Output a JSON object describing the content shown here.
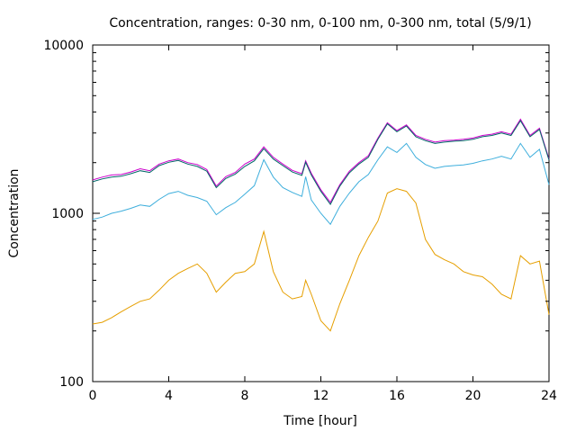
{
  "chart_data": {
    "type": "line",
    "title": "Concentration, ranges: 0-30 nm, 0-100 nm, 0-300 nm, total (5/9/1)",
    "xlabel": "Time [hour]",
    "ylabel": "Concentration",
    "xlim": [
      0,
      24
    ],
    "ylim": [
      100,
      10000
    ],
    "yscale": "log",
    "grid": false,
    "legend": "none",
    "x_ticks": [
      "0",
      "4",
      "8",
      "12",
      "16",
      "20",
      "24"
    ],
    "y_ticks": [
      "100",
      "1000",
      "10000"
    ],
    "x": [
      0,
      0.5,
      1,
      1.5,
      2,
      2.5,
      3,
      3.5,
      4,
      4.5,
      5,
      5.5,
      6,
      6.5,
      7,
      7.5,
      8,
      8.5,
      9,
      9.5,
      10,
      10.5,
      11,
      11.2,
      11.5,
      12,
      12.5,
      13,
      13.5,
      14,
      14.5,
      15,
      15.5,
      16,
      16.5,
      17,
      17.5,
      18,
      18.5,
      19,
      19.5,
      20,
      20.5,
      21,
      21.5,
      22,
      22.5,
      23,
      23.5,
      24
    ],
    "series": [
      {
        "color": "#cc00cc",
        "values": [
          1580,
          1640,
          1690,
          1700,
          1760,
          1840,
          1790,
          1960,
          2050,
          2100,
          2000,
          1950,
          1820,
          1450,
          1650,
          1750,
          1960,
          2100,
          2480,
          2150,
          1960,
          1800,
          1720,
          2050,
          1730,
          1380,
          1160,
          1480,
          1780,
          2000,
          2200,
          2800,
          3450,
          3100,
          3350,
          2900,
          2750,
          2650,
          2700,
          2720,
          2750,
          2800,
          2900,
          2950,
          3050,
          2950,
          3620,
          2900,
          3200,
          2100
        ]
      },
      {
        "color": "#006666",
        "values": [
          1540,
          1600,
          1640,
          1660,
          1720,
          1790,
          1750,
          1920,
          2010,
          2060,
          1960,
          1900,
          1780,
          1420,
          1610,
          1710,
          1900,
          2050,
          2420,
          2100,
          1920,
          1760,
          1680,
          2010,
          1690,
          1350,
          1130,
          1450,
          1740,
          1960,
          2150,
          2750,
          3400,
          3050,
          3300,
          2850,
          2700,
          2600,
          2650,
          2680,
          2700,
          2750,
          2850,
          2900,
          3000,
          2900,
          3550,
          2850,
          3150,
          2070
        ]
      },
      {
        "color": "#3daedc",
        "values": [
          920,
          950,
          1000,
          1030,
          1070,
          1120,
          1100,
          1210,
          1310,
          1350,
          1280,
          1240,
          1180,
          980,
          1080,
          1160,
          1300,
          1460,
          2080,
          1640,
          1420,
          1330,
          1260,
          1650,
          1200,
          1000,
          860,
          1100,
          1320,
          1540,
          1700,
          2080,
          2480,
          2300,
          2600,
          2150,
          1950,
          1850,
          1900,
          1920,
          1940,
          1980,
          2050,
          2100,
          2180,
          2100,
          2600,
          2150,
          2400,
          1480
        ]
      },
      {
        "color": "#e69f00",
        "values": [
          220,
          225,
          240,
          260,
          280,
          300,
          310,
          350,
          400,
          440,
          470,
          500,
          440,
          340,
          390,
          440,
          450,
          500,
          780,
          450,
          340,
          310,
          320,
          400,
          330,
          230,
          200,
          290,
          400,
          560,
          720,
          900,
          1320,
          1400,
          1350,
          1150,
          700,
          570,
          530,
          500,
          450,
          430,
          420,
          380,
          330,
          310,
          560,
          500,
          520,
          250
        ]
      }
    ]
  }
}
